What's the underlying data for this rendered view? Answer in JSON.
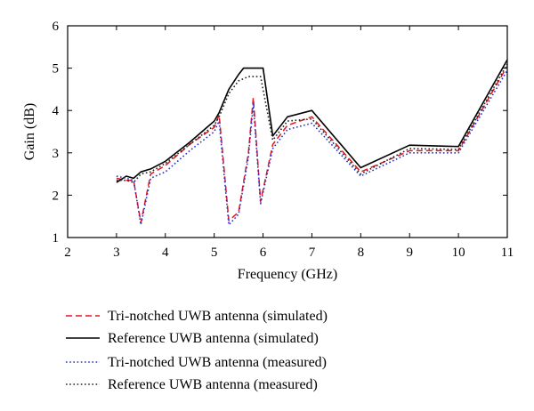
{
  "chart_data": {
    "type": "line",
    "xlabel": "Frequency (GHz)",
    "ylabel": "Gain (dB)",
    "xlim": [
      2,
      11
    ],
    "ylim": [
      1,
      6
    ],
    "xticks": [
      2,
      3,
      4,
      5,
      6,
      7,
      8,
      9,
      10,
      11
    ],
    "yticks": [
      1,
      2,
      3,
      4,
      5,
      6
    ],
    "grid": false,
    "legend_position": "bottom",
    "series": [
      {
        "name": "Tri-notched UWB antenna (simulated)",
        "color": "#e8141d",
        "dash": "dashed",
        "x": [
          3.0,
          3.2,
          3.35,
          3.5,
          3.7,
          4.0,
          4.5,
          5.0,
          5.1,
          5.3,
          5.5,
          5.7,
          5.8,
          5.95,
          6.2,
          6.5,
          7.0,
          8.0,
          9.0,
          10.0,
          11.0
        ],
        "y": [
          2.4,
          2.35,
          2.35,
          1.35,
          2.5,
          2.7,
          3.2,
          3.6,
          3.9,
          1.4,
          1.6,
          3.0,
          4.3,
          1.85,
          3.2,
          3.65,
          3.85,
          2.55,
          3.05,
          3.05,
          5.05
        ]
      },
      {
        "name": "Reference UWB antenna (simulated)",
        "color": "#000000",
        "dash": "solid",
        "x": [
          3.0,
          3.2,
          3.35,
          3.5,
          3.7,
          4.0,
          4.5,
          5.0,
          5.1,
          5.3,
          5.5,
          5.6,
          6.0,
          6.2,
          6.5,
          7.0,
          8.0,
          9.0,
          10.0,
          11.0
        ],
        "y": [
          2.3,
          2.45,
          2.4,
          2.55,
          2.62,
          2.8,
          3.25,
          3.75,
          3.95,
          4.5,
          4.85,
          5.0,
          5.0,
          3.4,
          3.85,
          4.0,
          2.65,
          3.18,
          3.15,
          5.2
        ]
      },
      {
        "name": "Tri-notched UWB antenna (measured)",
        "color": "#2233cc",
        "dash": "dotted",
        "x": [
          3.0,
          3.2,
          3.35,
          3.5,
          3.7,
          4.0,
          4.5,
          5.0,
          5.1,
          5.3,
          5.5,
          5.7,
          5.8,
          5.95,
          6.2,
          6.5,
          7.0,
          8.0,
          9.0,
          10.0,
          11.0
        ],
        "y": [
          2.45,
          2.4,
          2.35,
          1.3,
          2.4,
          2.55,
          3.05,
          3.5,
          3.75,
          1.3,
          1.55,
          2.9,
          4.15,
          1.8,
          3.1,
          3.55,
          3.7,
          2.45,
          3.0,
          3.0,
          4.95
        ]
      },
      {
        "name": "Reference UWB antenna (measured)",
        "color": "#222222",
        "dash": "dotted",
        "x": [
          3.0,
          3.2,
          3.35,
          3.5,
          3.7,
          4.0,
          4.5,
          5.0,
          5.1,
          5.3,
          5.5,
          5.7,
          5.95,
          6.2,
          6.5,
          7.0,
          8.0,
          9.0,
          10.0,
          11.0
        ],
        "y": [
          2.35,
          2.35,
          2.3,
          2.5,
          2.55,
          2.75,
          3.2,
          3.65,
          3.85,
          4.4,
          4.7,
          4.8,
          4.8,
          3.3,
          3.75,
          3.8,
          2.5,
          3.1,
          3.08,
          5.1
        ]
      }
    ]
  }
}
